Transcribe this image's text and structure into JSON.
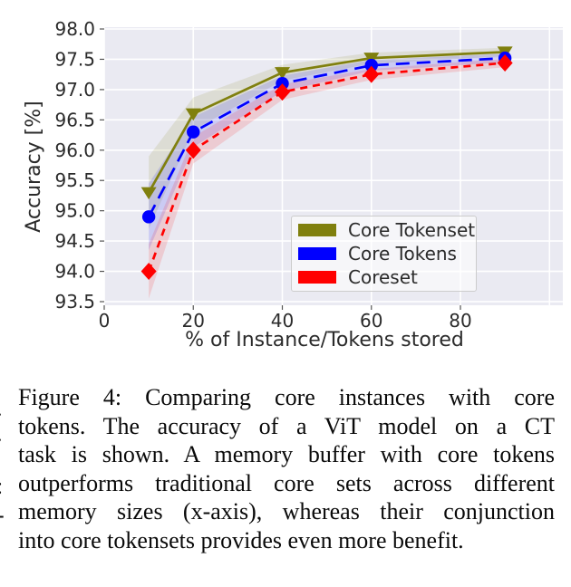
{
  "figure": {
    "caption": {
      "label": "Figure 4:",
      "lines": [
        "Figure 4:  Comparing core instances with core",
        "tokens.  The accuracy of a ViT model on a CT",
        "task is shown. A memory buffer with core tokens",
        "outperforms traditional core sets across different",
        "memory sizes (x-axis), whereas their conjunction",
        "into core tokensets provides even more benefit."
      ],
      "full_text": "Figure 4: Comparing core instances with core tokens. The accuracy of a ViT model on a CT task is shown. A memory buffer with core tokens outperforms traditional core sets across different memory sizes (x-axis), whereas their conjunction into core tokensets provides even more benefit."
    },
    "margin_fragments": [
      ".",
      ".",
      ":",
      "-"
    ]
  },
  "chart_data": {
    "type": "line",
    "title": "",
    "xlabel": "% of Instance/Tokens stored",
    "ylabel": "Accuracy [%]",
    "x": [
      10,
      20,
      40,
      60,
      90
    ],
    "xlim": [
      0,
      103
    ],
    "ylim": [
      93.44,
      98.03
    ],
    "xticks": [
      {
        "label": "0",
        "value": 0
      },
      {
        "label": "20",
        "value": 20
      },
      {
        "label": "40",
        "value": 40
      },
      {
        "label": "60",
        "value": 60
      },
      {
        "label": "80",
        "value": 80
      }
    ],
    "xgridlines": [
      0,
      20,
      40,
      60,
      80,
      100
    ],
    "yticks": [
      {
        "label": "98.0",
        "value": 98.0
      },
      {
        "label": "97.5",
        "value": 97.5
      },
      {
        "label": "97.0",
        "value": 97.0
      },
      {
        "label": "96.5",
        "value": 96.5
      },
      {
        "label": "96.0",
        "value": 96.0
      },
      {
        "label": "95.5",
        "value": 95.5
      },
      {
        "label": "95.0",
        "value": 95.0
      },
      {
        "label": "94.5",
        "value": 94.5
      },
      {
        "label": "94.0",
        "value": 94.0
      },
      {
        "label": "93.5",
        "value": 93.5
      }
    ],
    "grid": true,
    "legend_position": "lower-right-inside",
    "colors": {
      "plot_background": "#eaeaf2",
      "grid": "#ffffff",
      "text": "#2b2b2b",
      "tick": "#555555"
    },
    "series": [
      {
        "name": "Core Tokenset",
        "color": "#80800e",
        "marker": "triangle-down",
        "line_style": "solid",
        "values": [
          95.3,
          96.6,
          97.28,
          97.52,
          97.62
        ],
        "band_half_width": [
          0.6,
          0.27,
          0.13,
          0.09,
          0.07
        ]
      },
      {
        "name": "Core Tokens",
        "color": "#0000ff",
        "marker": "circle",
        "line_style": "long-dash",
        "values": [
          94.9,
          96.3,
          97.1,
          97.4,
          97.52
        ],
        "band_half_width": [
          0.55,
          0.25,
          0.13,
          0.09,
          0.07
        ]
      },
      {
        "name": "Coreset",
        "color": "#ff0000",
        "marker": "diamond",
        "line_style": "dash",
        "values": [
          94.0,
          96.0,
          96.96,
          97.25,
          97.44
        ],
        "band_half_width": [
          0.45,
          0.22,
          0.13,
          0.09,
          0.07
        ]
      }
    ]
  }
}
